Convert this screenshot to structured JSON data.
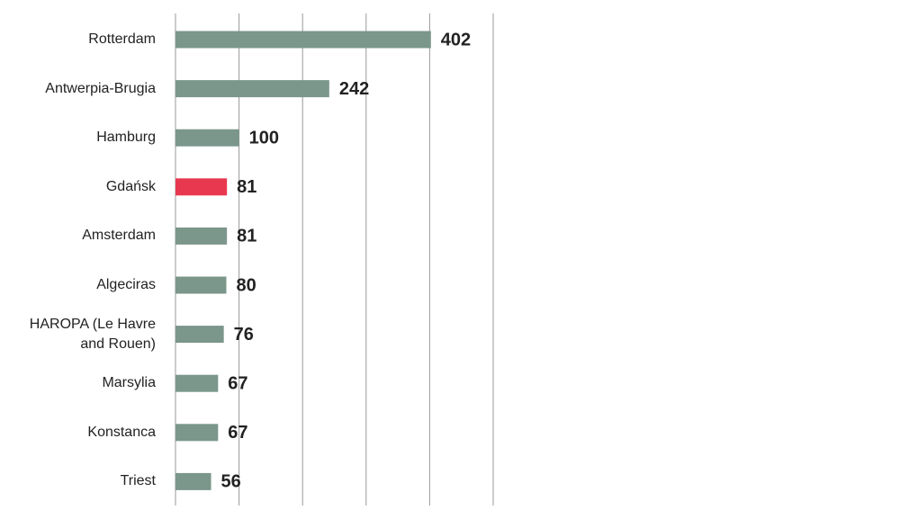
{
  "chart_data": {
    "type": "bar",
    "orientation": "horizontal",
    "categories": [
      "Rotterdam",
      "Antwerpia-Brugia",
      "Hamburg",
      "Gdańsk",
      "Amsterdam",
      "Algeciras",
      "HAROPA (Le Havre and Rouen)",
      "Marsylia",
      "Konstanca",
      "Triest"
    ],
    "values": [
      402,
      242,
      100,
      81,
      81,
      80,
      76,
      67,
      67,
      56
    ],
    "colors": [
      "#7b968a",
      "#7b968a",
      "#7b968a",
      "#e8384f",
      "#7b968a",
      "#7b968a",
      "#7b968a",
      "#7b968a",
      "#7b968a",
      "#7b968a"
    ],
    "xlim": [
      0,
      500
    ],
    "xticks": [
      0,
      100,
      200,
      300,
      400,
      500
    ],
    "grid": true
  }
}
